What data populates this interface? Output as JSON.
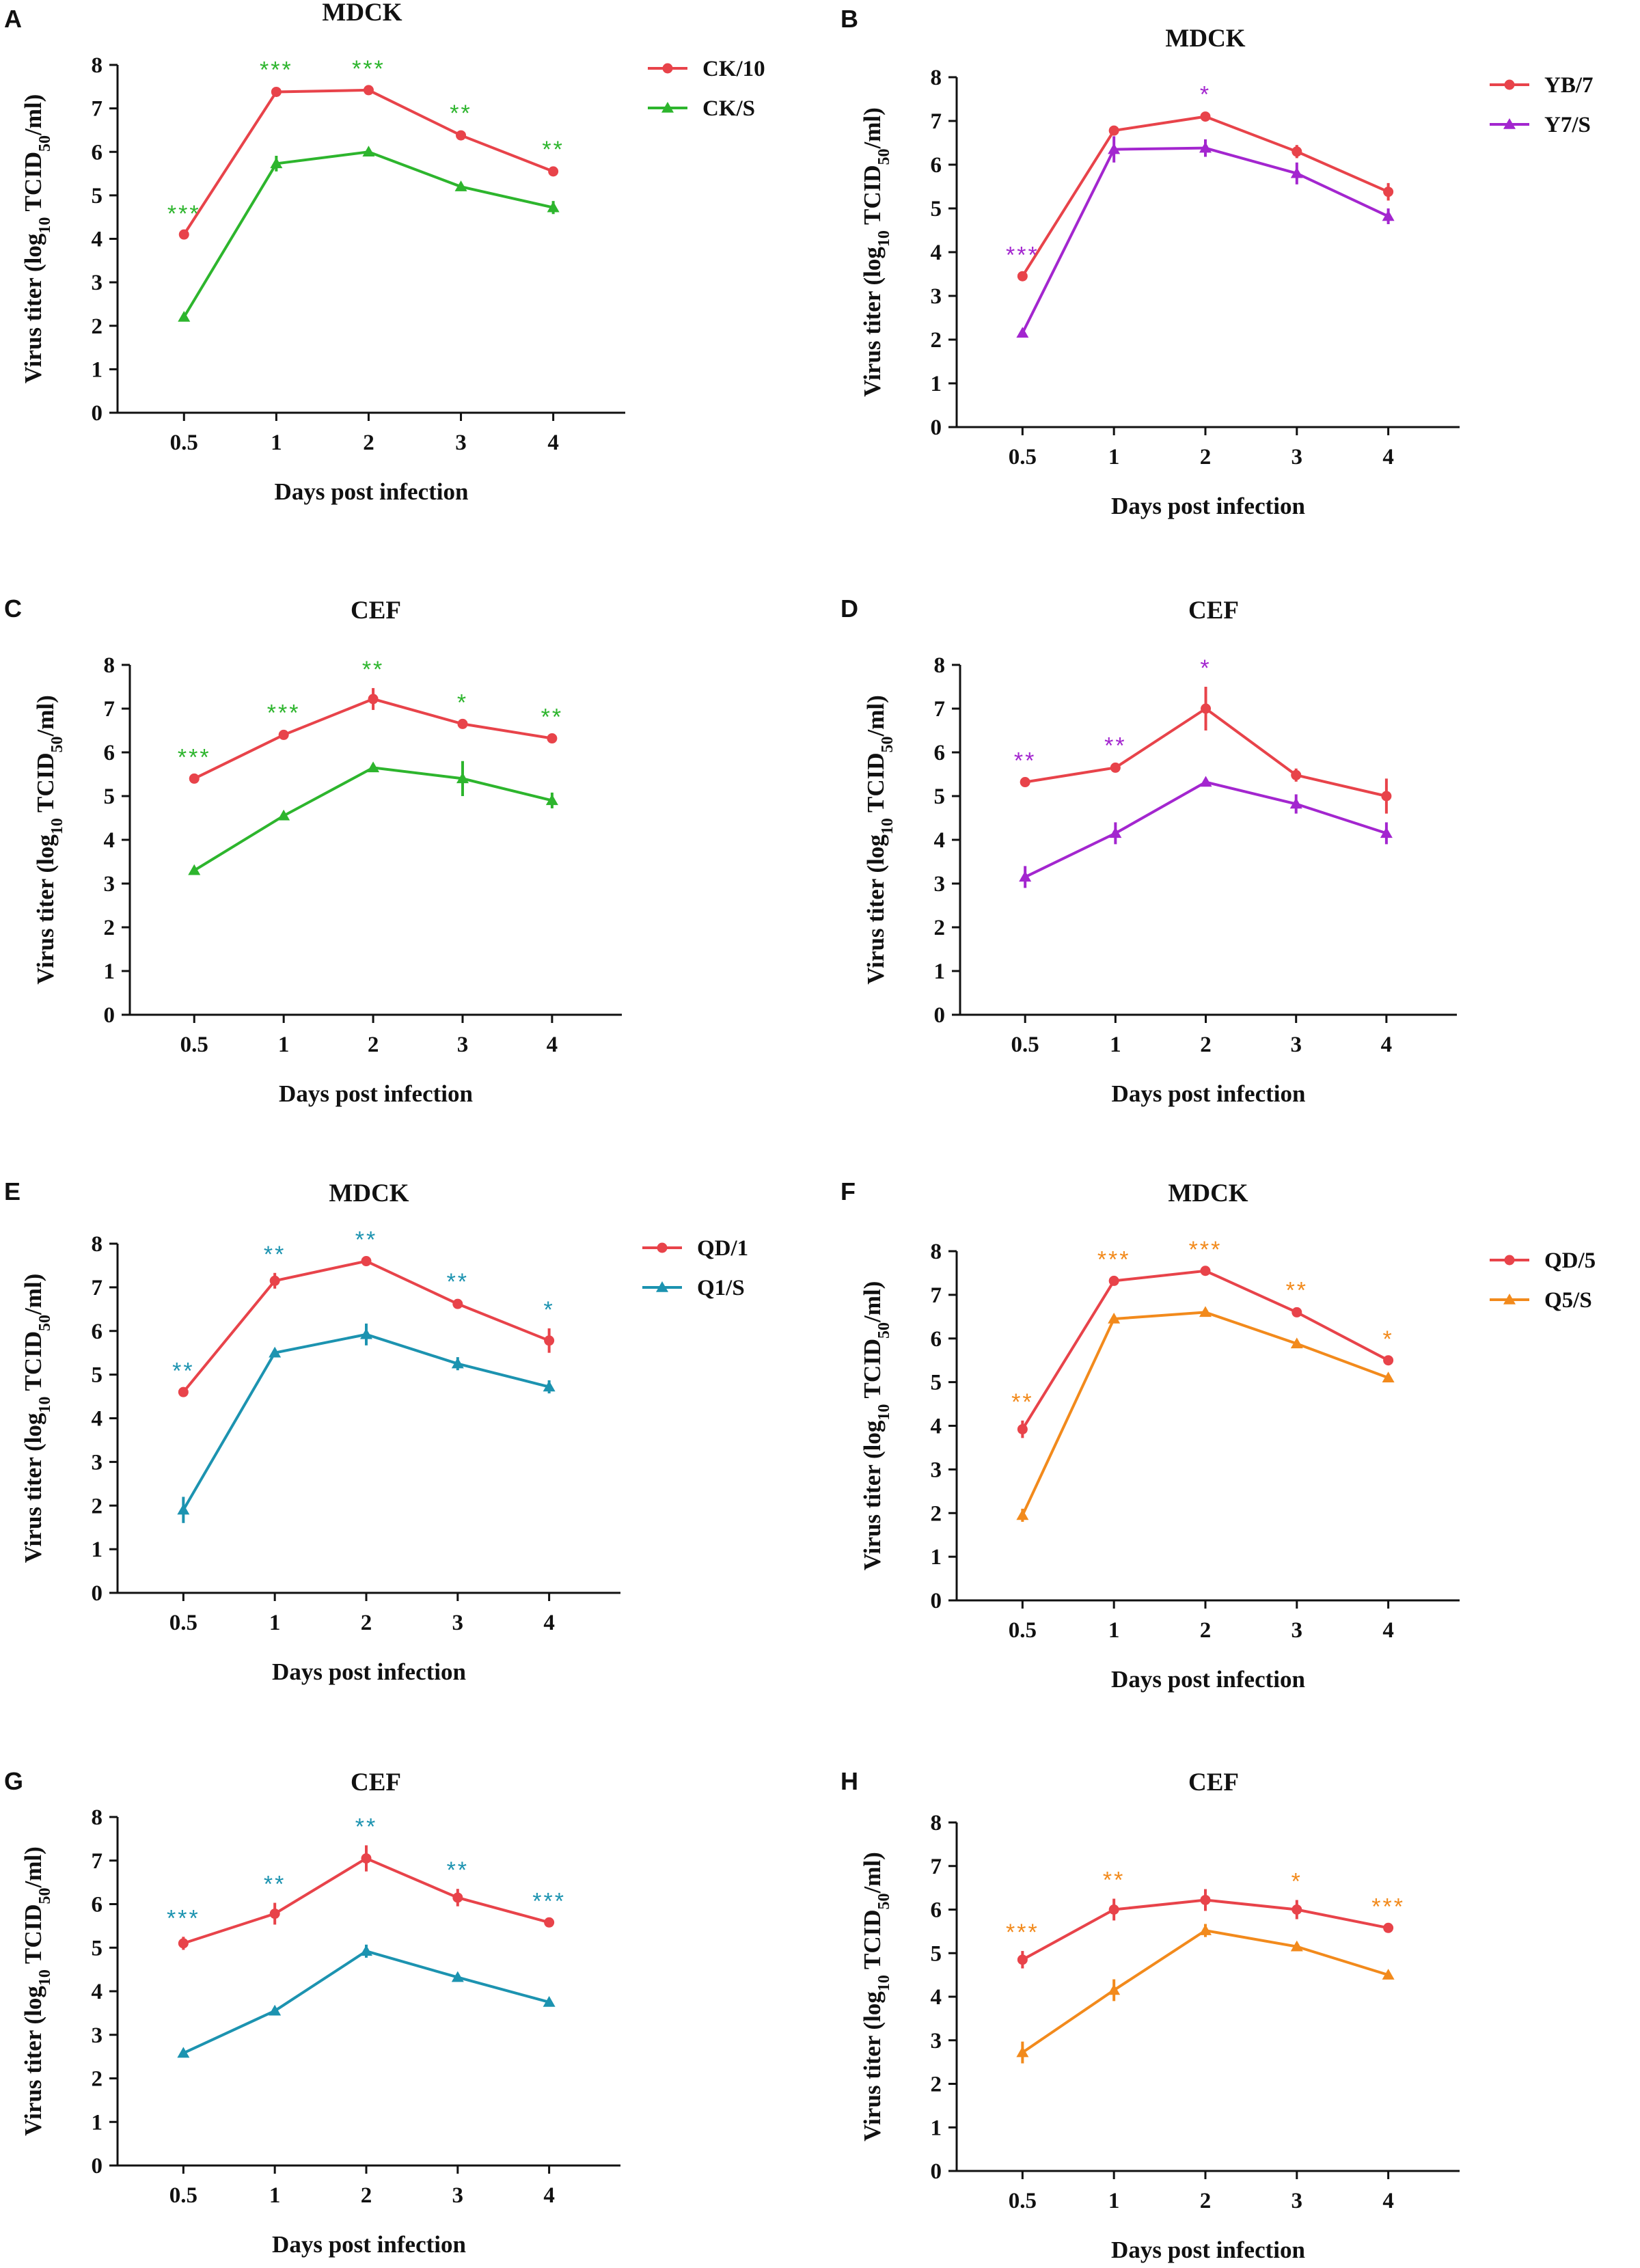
{
  "figure": {
    "xlabel": "Days post infection",
    "ylabel_prefix": "Virus titer (log",
    "ylabel_sub1": "10",
    "ylabel_mid": " TCID",
    "ylabel_sub2": "50",
    "ylabel_suffix": "/ml)"
  },
  "colors": {
    "red": "#e8434a",
    "green": "#2db52d",
    "purple": "#a326cf",
    "teal": "#1c93b0",
    "orange": "#f28a1c",
    "axis": "#111111"
  },
  "chart_data": [
    {
      "panel": "A",
      "title": "MDCK",
      "type": "line",
      "categories": [
        "0.5",
        "1",
        "2",
        "3",
        "4"
      ],
      "ylim": [
        0,
        8
      ],
      "yticks": [
        "0",
        "1",
        "2",
        "3",
        "4",
        "5",
        "6",
        "7",
        "8"
      ],
      "xlabel": "Days post infection",
      "ylabel": "Virus titer (log10 TCID50/ml)",
      "legend": "top-right",
      "sig_color": "green",
      "significance": [
        "***",
        "***",
        "***",
        "**",
        "**"
      ],
      "series": [
        {
          "name": "CK/10",
          "color": "red",
          "marker": "circle",
          "values": [
            4.1,
            7.38,
            7.42,
            6.38,
            5.55
          ],
          "errors": [
            0.05,
            0.08,
            0.06,
            0.08,
            0.08
          ]
        },
        {
          "name": "CK/S",
          "color": "green",
          "marker": "triangle",
          "values": [
            2.2,
            5.73,
            6.0,
            5.2,
            4.72
          ],
          "errors": [
            0.06,
            0.18,
            0.08,
            0.08,
            0.15
          ]
        }
      ]
    },
    {
      "panel": "B",
      "title": "MDCK",
      "type": "line",
      "categories": [
        "0.5",
        "1",
        "2",
        "3",
        "4"
      ],
      "ylim": [
        0,
        8
      ],
      "yticks": [
        "0",
        "1",
        "2",
        "3",
        "4",
        "5",
        "6",
        "7",
        "8"
      ],
      "xlabel": "Days post infection",
      "ylabel": "Virus titer (log10 TCID50/ml)",
      "legend": "top-right",
      "sig_color": "purple",
      "significance": [
        "***",
        "",
        "*",
        "",
        ""
      ],
      "series": [
        {
          "name": "YB/7",
          "color": "red",
          "marker": "circle",
          "values": [
            3.45,
            6.78,
            7.1,
            6.3,
            5.38
          ],
          "errors": [
            0.06,
            0.08,
            0.08,
            0.15,
            0.2
          ]
        },
        {
          "name": "Y7/S",
          "color": "purple",
          "marker": "triangle",
          "values": [
            2.15,
            6.35,
            6.38,
            5.8,
            4.82
          ],
          "errors": [
            0.06,
            0.3,
            0.2,
            0.25,
            0.18
          ]
        }
      ]
    },
    {
      "panel": "C",
      "title": "CEF",
      "type": "line",
      "categories": [
        "0.5",
        "1",
        "2",
        "3",
        "4"
      ],
      "ylim": [
        0,
        8
      ],
      "yticks": [
        "0",
        "1",
        "2",
        "3",
        "4",
        "5",
        "6",
        "7",
        "8"
      ],
      "xlabel": "Days post infection",
      "ylabel": "Virus titer (log10 TCID50/ml)",
      "legend": "none",
      "sig_color": "green",
      "significance": [
        "***",
        "***",
        "**",
        "*",
        "**"
      ],
      "series": [
        {
          "name": "CK/10",
          "color": "red",
          "marker": "circle",
          "values": [
            5.4,
            6.4,
            7.22,
            6.65,
            6.32
          ],
          "errors": [
            0.06,
            0.08,
            0.25,
            0.06,
            0.06
          ]
        },
        {
          "name": "CK/S",
          "color": "green",
          "marker": "triangle",
          "values": [
            3.3,
            4.55,
            5.65,
            5.4,
            4.9
          ],
          "errors": [
            0.06,
            0.08,
            0.06,
            0.4,
            0.18
          ]
        }
      ]
    },
    {
      "panel": "D",
      "title": "CEF",
      "type": "line",
      "categories": [
        "0.5",
        "1",
        "2",
        "3",
        "4"
      ],
      "ylim": [
        0,
        8
      ],
      "yticks": [
        "0",
        "1",
        "2",
        "3",
        "4",
        "5",
        "6",
        "7",
        "8"
      ],
      "xlabel": "Days post infection",
      "ylabel": "Virus titer (log10 TCID50/ml)",
      "legend": "none",
      "sig_color": "purple",
      "significance": [
        "**",
        "**",
        "*",
        "",
        ""
      ],
      "series": [
        {
          "name": "YB/7",
          "color": "red",
          "marker": "circle",
          "values": [
            5.32,
            5.65,
            7.0,
            5.48,
            5.0
          ],
          "errors": [
            0.06,
            0.08,
            0.5,
            0.15,
            0.4
          ]
        },
        {
          "name": "Y7/S",
          "color": "purple",
          "marker": "triangle",
          "values": [
            3.15,
            4.15,
            5.32,
            4.82,
            4.15
          ],
          "errors": [
            0.25,
            0.25,
            0.08,
            0.22,
            0.25
          ]
        }
      ]
    },
    {
      "panel": "E",
      "title": "MDCK",
      "type": "line",
      "categories": [
        "0.5",
        "1",
        "2",
        "3",
        "4"
      ],
      "ylim": [
        0,
        8
      ],
      "yticks": [
        "0",
        "1",
        "2",
        "3",
        "4",
        "5",
        "6",
        "7",
        "8"
      ],
      "xlabel": "Days post infection",
      "ylabel": "Virus titer (log10 TCID50/ml)",
      "legend": "top-right",
      "sig_color": "teal",
      "significance": [
        "**",
        "**",
        "**",
        "**",
        "*"
      ],
      "series": [
        {
          "name": "QD/1",
          "color": "red",
          "marker": "circle",
          "values": [
            4.6,
            7.15,
            7.6,
            6.62,
            5.78
          ],
          "errors": [
            0.06,
            0.18,
            0.06,
            0.08,
            0.28
          ]
        },
        {
          "name": "Q1/S",
          "color": "teal",
          "marker": "triangle",
          "values": [
            1.9,
            5.5,
            5.92,
            5.25,
            4.72
          ],
          "errors": [
            0.3,
            0.06,
            0.25,
            0.15,
            0.15
          ]
        }
      ]
    },
    {
      "panel": "F",
      "title": "MDCK",
      "type": "line",
      "categories": [
        "0.5",
        "1",
        "2",
        "3",
        "4"
      ],
      "ylim": [
        0,
        8
      ],
      "yticks": [
        "0",
        "1",
        "2",
        "3",
        "4",
        "5",
        "6",
        "7",
        "8"
      ],
      "xlabel": "Days post infection",
      "ylabel": "Virus titer (log10 TCID50/ml)",
      "legend": "top-right",
      "sig_color": "orange",
      "significance": [
        "**",
        "***",
        "***",
        "**",
        "*"
      ],
      "series": [
        {
          "name": "QD/5",
          "color": "red",
          "marker": "circle",
          "values": [
            3.92,
            7.32,
            7.55,
            6.6,
            5.5
          ],
          "errors": [
            0.2,
            0.06,
            0.06,
            0.08,
            0.06
          ]
        },
        {
          "name": "Q5/S",
          "color": "orange",
          "marker": "triangle",
          "values": [
            1.95,
            6.45,
            6.6,
            5.88,
            5.1
          ],
          "errors": [
            0.15,
            0.06,
            0.06,
            0.06,
            0.06
          ]
        }
      ]
    },
    {
      "panel": "G",
      "title": "CEF",
      "type": "line",
      "categories": [
        "0.5",
        "1",
        "2",
        "3",
        "4"
      ],
      "ylim": [
        0,
        8
      ],
      "yticks": [
        "0",
        "1",
        "2",
        "3",
        "4",
        "5",
        "6",
        "7",
        "8"
      ],
      "xlabel": "Days post infection",
      "ylabel": "Virus titer (log10 TCID50/ml)",
      "legend": "none",
      "sig_color": "teal",
      "significance": [
        "***",
        "**",
        "**",
        "**",
        "***"
      ],
      "series": [
        {
          "name": "QD/1",
          "color": "red",
          "marker": "circle",
          "values": [
            5.1,
            5.78,
            7.05,
            6.15,
            5.58
          ],
          "errors": [
            0.15,
            0.25,
            0.3,
            0.2,
            0.06
          ]
        },
        {
          "name": "Q1/S",
          "color": "teal",
          "marker": "triangle",
          "values": [
            2.58,
            3.55,
            4.92,
            4.32,
            3.75
          ],
          "errors": [
            0.06,
            0.06,
            0.15,
            0.06,
            0.06
          ]
        }
      ]
    },
    {
      "panel": "H",
      "title": "CEF",
      "type": "line",
      "categories": [
        "0.5",
        "1",
        "2",
        "3",
        "4"
      ],
      "ylim": [
        0,
        8
      ],
      "yticks": [
        "0",
        "1",
        "2",
        "3",
        "4",
        "5",
        "6",
        "7",
        "8"
      ],
      "xlabel": "Days post infection",
      "ylabel": "Virus titer (log10 TCID50/ml)",
      "legend": "none",
      "sig_color": "orange",
      "significance": [
        "***",
        "**",
        "",
        "*",
        "***"
      ],
      "series": [
        {
          "name": "QD/5",
          "color": "red",
          "marker": "circle",
          "values": [
            4.85,
            6.0,
            6.22,
            6.0,
            5.58
          ],
          "errors": [
            0.2,
            0.25,
            0.25,
            0.22,
            0.06
          ]
        },
        {
          "name": "Q5/S",
          "color": "orange",
          "marker": "triangle",
          "values": [
            2.72,
            4.15,
            5.52,
            5.15,
            4.5
          ],
          "errors": [
            0.25,
            0.25,
            0.15,
            0.06,
            0.06
          ]
        }
      ]
    }
  ]
}
